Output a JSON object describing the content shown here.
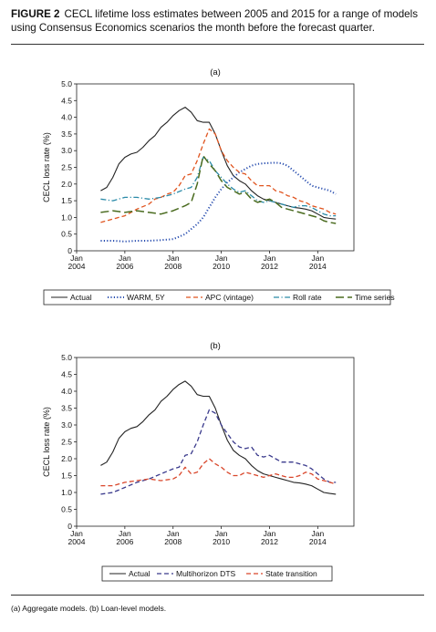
{
  "figure": {
    "label": "FIGURE 2",
    "title": "CECL lifetime loss estimates between 2005 and 2015 for a range of models using Consensus Economics scenarios the month before the forecast quarter.",
    "caption": "(a) Aggregate models. (b) Loan-level models."
  },
  "chart_data": [
    {
      "type": "line",
      "panel": "(a)",
      "ylabel": "CECL loss rate (%)",
      "xlabel": "",
      "ylim": [
        0,
        5
      ],
      "yticks": [
        "0",
        "0.5",
        "1.0",
        "1.5",
        "2.0",
        "2.5",
        "3.0",
        "3.5",
        "4.0",
        "4.5",
        "5.0"
      ],
      "xlim": [
        2004,
        2015.5
      ],
      "xticks": [
        {
          "top": "Jan",
          "bottom": "2004"
        },
        {
          "top": "Jan",
          "bottom": "2006"
        },
        {
          "top": "Jan",
          "bottom": "2008"
        },
        {
          "top": "Jan",
          "bottom": "2010"
        },
        {
          "top": "Jan",
          "bottom": "2012"
        },
        {
          "top": "Jan",
          "bottom": "2014"
        }
      ],
      "legend_position": "bottom",
      "series": [
        {
          "name": "Actual",
          "color": "#222222",
          "dash": "solid",
          "x": [
            2005.0,
            2005.25,
            2005.5,
            2005.75,
            2006.0,
            2006.25,
            2006.5,
            2006.75,
            2007.0,
            2007.25,
            2007.5,
            2007.75,
            2008.0,
            2008.25,
            2008.5,
            2008.75,
            2009.0,
            2009.25,
            2009.5,
            2009.75,
            2010.0,
            2010.25,
            2010.5,
            2010.75,
            2011.0,
            2011.25,
            2011.5,
            2011.75,
            2012.0,
            2012.25,
            2012.5,
            2012.75,
            2013.0,
            2013.25,
            2013.5,
            2013.75,
            2014.0,
            2014.25,
            2014.5,
            2014.75
          ],
          "y": [
            1.8,
            1.9,
            2.2,
            2.6,
            2.8,
            2.9,
            2.95,
            3.1,
            3.3,
            3.45,
            3.7,
            3.85,
            4.05,
            4.2,
            4.3,
            4.15,
            3.9,
            3.85,
            3.85,
            3.5,
            3.0,
            2.55,
            2.25,
            2.1,
            2.0,
            1.8,
            1.65,
            1.55,
            1.5,
            1.45,
            1.4,
            1.35,
            1.3,
            1.28,
            1.25,
            1.2,
            1.1,
            1.0,
            0.97,
            0.95
          ]
        },
        {
          "name": "WARM, 5Y",
          "color": "#2a4fb0",
          "dash": "dotted",
          "x": [
            2005.0,
            2005.5,
            2006.0,
            2006.5,
            2007.0,
            2007.5,
            2008.0,
            2008.25,
            2008.5,
            2008.75,
            2009.0,
            2009.25,
            2009.5,
            2009.75,
            2010.0,
            2010.25,
            2010.5,
            2010.75,
            2011.0,
            2011.25,
            2011.5,
            2011.75,
            2012.0,
            2012.25,
            2012.5,
            2012.75,
            2013.0,
            2013.25,
            2013.5,
            2013.75,
            2014.0,
            2014.25,
            2014.5,
            2014.75
          ],
          "y": [
            0.3,
            0.3,
            0.28,
            0.3,
            0.3,
            0.32,
            0.35,
            0.42,
            0.5,
            0.65,
            0.8,
            1.0,
            1.3,
            1.6,
            1.85,
            2.05,
            2.2,
            2.35,
            2.45,
            2.55,
            2.6,
            2.62,
            2.63,
            2.64,
            2.62,
            2.55,
            2.4,
            2.25,
            2.1,
            1.95,
            1.9,
            1.85,
            1.8,
            1.7
          ]
        },
        {
          "name": "APC (vintage)",
          "color": "#e0541f",
          "dash": "dashed",
          "x": [
            2005.0,
            2005.5,
            2006.0,
            2006.5,
            2007.0,
            2007.25,
            2007.5,
            2007.75,
            2008.0,
            2008.25,
            2008.5,
            2008.75,
            2009.0,
            2009.25,
            2009.5,
            2009.75,
            2010.0,
            2010.25,
            2010.5,
            2010.75,
            2011.0,
            2011.25,
            2011.5,
            2011.75,
            2012.0,
            2012.25,
            2012.5,
            2012.75,
            2013.0,
            2013.25,
            2013.5,
            2013.75,
            2014.0,
            2014.25,
            2014.5,
            2014.75
          ],
          "y": [
            0.85,
            0.95,
            1.05,
            1.25,
            1.4,
            1.55,
            1.6,
            1.7,
            1.75,
            1.95,
            2.25,
            2.3,
            2.7,
            3.2,
            3.65,
            3.5,
            3.0,
            2.7,
            2.5,
            2.35,
            2.3,
            2.1,
            1.95,
            1.95,
            1.95,
            1.8,
            1.75,
            1.65,
            1.6,
            1.5,
            1.45,
            1.35,
            1.3,
            1.25,
            1.15,
            1.1
          ]
        },
        {
          "name": "Roll rate",
          "color": "#2a8aa8",
          "dash": "dashdot",
          "x": [
            2005.0,
            2005.5,
            2006.0,
            2006.5,
            2007.0,
            2007.5,
            2008.0,
            2008.5,
            2008.75,
            2009.0,
            2009.25,
            2009.5,
            2009.75,
            2010.0,
            2010.25,
            2010.5,
            2010.75,
            2011.0,
            2011.25,
            2011.5,
            2011.75,
            2012.0,
            2012.25,
            2012.5,
            2012.75,
            2013.0,
            2013.25,
            2013.5,
            2013.75,
            2014.0,
            2014.25,
            2014.5,
            2014.75
          ],
          "y": [
            1.55,
            1.5,
            1.6,
            1.6,
            1.55,
            1.6,
            1.7,
            1.85,
            1.9,
            2.2,
            2.8,
            2.7,
            2.4,
            2.2,
            2.0,
            1.85,
            1.75,
            1.8,
            1.65,
            1.5,
            1.45,
            1.5,
            1.45,
            1.4,
            1.35,
            1.3,
            1.35,
            1.35,
            1.3,
            1.2,
            1.1,
            1.05,
            1.05
          ]
        },
        {
          "name": "Time series",
          "color": "#4a6b1f",
          "dash": "longdash",
          "x": [
            2005.0,
            2005.5,
            2006.0,
            2006.5,
            2007.0,
            2007.5,
            2008.0,
            2008.5,
            2008.75,
            2009.0,
            2009.25,
            2009.5,
            2009.75,
            2010.0,
            2010.25,
            2010.5,
            2010.75,
            2011.0,
            2011.25,
            2011.5,
            2011.75,
            2012.0,
            2012.25,
            2012.5,
            2012.75,
            2013.0,
            2013.25,
            2013.5,
            2013.75,
            2014.0,
            2014.25,
            2014.5,
            2014.75
          ],
          "y": [
            1.15,
            1.2,
            1.15,
            1.2,
            1.15,
            1.1,
            1.2,
            1.35,
            1.45,
            2.0,
            2.85,
            2.6,
            2.4,
            2.1,
            1.9,
            1.8,
            1.7,
            1.75,
            1.55,
            1.45,
            1.5,
            1.55,
            1.45,
            1.3,
            1.25,
            1.2,
            1.15,
            1.1,
            1.05,
            1.0,
            0.9,
            0.85,
            0.82
          ]
        }
      ]
    },
    {
      "type": "line",
      "panel": "(b)",
      "ylabel": "CECL loss rate (%)",
      "xlabel": "",
      "ylim": [
        0,
        5
      ],
      "yticks": [
        "0",
        "0.5",
        "1.0",
        "1.5",
        "2.0",
        "2.5",
        "3.0",
        "3.5",
        "4.0",
        "4.5",
        "5.0"
      ],
      "xlim": [
        2004,
        2015.5
      ],
      "xticks": [
        {
          "top": "Jan",
          "bottom": "2004"
        },
        {
          "top": "Jan",
          "bottom": "2006"
        },
        {
          "top": "Jan",
          "bottom": "2008"
        },
        {
          "top": "Jan",
          "bottom": "2010"
        },
        {
          "top": "Jan",
          "bottom": "2012"
        },
        {
          "top": "Jan",
          "bottom": "2014"
        }
      ],
      "legend_position": "bottom",
      "series": [
        {
          "name": "Actual",
          "color": "#222222",
          "dash": "solid",
          "x": [
            2005.0,
            2005.25,
            2005.5,
            2005.75,
            2006.0,
            2006.25,
            2006.5,
            2006.75,
            2007.0,
            2007.25,
            2007.5,
            2007.75,
            2008.0,
            2008.25,
            2008.5,
            2008.75,
            2009.0,
            2009.25,
            2009.5,
            2009.75,
            2010.0,
            2010.25,
            2010.5,
            2010.75,
            2011.0,
            2011.25,
            2011.5,
            2011.75,
            2012.0,
            2012.25,
            2012.5,
            2012.75,
            2013.0,
            2013.25,
            2013.5,
            2013.75,
            2014.0,
            2014.25,
            2014.5,
            2014.75
          ],
          "y": [
            1.8,
            1.9,
            2.2,
            2.6,
            2.8,
            2.9,
            2.95,
            3.1,
            3.3,
            3.45,
            3.7,
            3.85,
            4.05,
            4.2,
            4.3,
            4.15,
            3.9,
            3.85,
            3.85,
            3.5,
            3.0,
            2.55,
            2.25,
            2.1,
            2.0,
            1.8,
            1.65,
            1.55,
            1.5,
            1.45,
            1.4,
            1.35,
            1.3,
            1.28,
            1.25,
            1.2,
            1.1,
            1.0,
            0.97,
            0.95
          ]
        },
        {
          "name": "Multihorizon DTS",
          "color": "#3a3a8c",
          "dash": "dashed",
          "x": [
            2005.0,
            2005.5,
            2006.0,
            2006.5,
            2007.0,
            2007.5,
            2008.0,
            2008.25,
            2008.5,
            2008.75,
            2009.0,
            2009.25,
            2009.5,
            2009.75,
            2010.0,
            2010.25,
            2010.5,
            2010.75,
            2011.0,
            2011.25,
            2011.5,
            2011.75,
            2012.0,
            2012.25,
            2012.5,
            2012.75,
            2013.0,
            2013.25,
            2013.5,
            2013.75,
            2014.0,
            2014.25,
            2014.5,
            2014.75
          ],
          "y": [
            0.95,
            1.0,
            1.15,
            1.3,
            1.4,
            1.55,
            1.7,
            1.75,
            2.1,
            2.15,
            2.5,
            3.0,
            3.45,
            3.35,
            3.0,
            2.75,
            2.5,
            2.35,
            2.3,
            2.35,
            2.1,
            2.05,
            2.1,
            2.0,
            1.9,
            1.9,
            1.9,
            1.85,
            1.8,
            1.7,
            1.55,
            1.4,
            1.3,
            1.3
          ]
        },
        {
          "name": "State transition",
          "color": "#d9462a",
          "dash": "dashed",
          "x": [
            2005.0,
            2005.5,
            2006.0,
            2006.5,
            2007.0,
            2007.5,
            2008.0,
            2008.25,
            2008.5,
            2008.75,
            2009.0,
            2009.25,
            2009.5,
            2009.75,
            2010.0,
            2010.25,
            2010.5,
            2010.75,
            2011.0,
            2011.25,
            2011.5,
            2011.75,
            2012.0,
            2012.25,
            2012.5,
            2012.75,
            2013.0,
            2013.25,
            2013.5,
            2013.75,
            2014.0,
            2014.25,
            2014.5,
            2014.75
          ],
          "y": [
            1.2,
            1.2,
            1.3,
            1.35,
            1.4,
            1.35,
            1.4,
            1.5,
            1.75,
            1.55,
            1.6,
            1.85,
            2.0,
            1.85,
            1.75,
            1.6,
            1.5,
            1.5,
            1.6,
            1.55,
            1.5,
            1.45,
            1.5,
            1.55,
            1.5,
            1.45,
            1.45,
            1.5,
            1.6,
            1.55,
            1.4,
            1.35,
            1.3,
            1.25
          ]
        }
      ]
    }
  ]
}
